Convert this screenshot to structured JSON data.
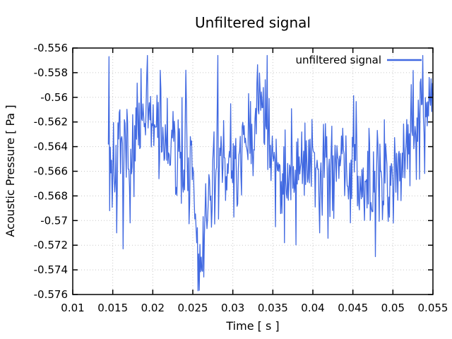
{
  "page": {
    "background": "#ffffff"
  },
  "chart_data": {
    "type": "line",
    "title": "Unfiltered signal",
    "xlabel": "Time [ s ]",
    "ylabel": "Acoustic Pressure [ Pa ]",
    "xlim": [
      0.01,
      0.055
    ],
    "ylim": [
      -0.576,
      -0.556
    ],
    "x_ticks": [
      {
        "v": 0.01,
        "label": "0.01"
      },
      {
        "v": 0.015,
        "label": "0.015"
      },
      {
        "v": 0.02,
        "label": "0.02"
      },
      {
        "v": 0.025,
        "label": "0.025"
      },
      {
        "v": 0.03,
        "label": "0.03"
      },
      {
        "v": 0.035,
        "label": "0.035"
      },
      {
        "v": 0.04,
        "label": "0.04"
      },
      {
        "v": 0.045,
        "label": "0.045"
      },
      {
        "v": 0.05,
        "label": "0.05"
      },
      {
        "v": 0.055,
        "label": "0.055"
      }
    ],
    "y_ticks": [
      {
        "v": -0.556,
        "label": "-0.556"
      },
      {
        "v": -0.558,
        "label": "-0.558"
      },
      {
        "v": -0.56,
        "label": "-0.56"
      },
      {
        "v": -0.562,
        "label": "-0.562"
      },
      {
        "v": -0.564,
        "label": "-0.564"
      },
      {
        "v": -0.566,
        "label": "-0.566"
      },
      {
        "v": -0.568,
        "label": "-0.568"
      },
      {
        "v": -0.57,
        "label": "-0.57"
      },
      {
        "v": -0.572,
        "label": "-0.572"
      },
      {
        "v": -0.574,
        "label": "-0.574"
      },
      {
        "v": -0.576,
        "label": "-0.576"
      }
    ],
    "grid": {
      "style": "dotted",
      "color": "#c8c8c8",
      "on": true
    },
    "legend": {
      "label": "unfiltered signal",
      "position": "top-right"
    },
    "axis_color": "#000000",
    "series": [
      {
        "name": "unfiltered signal",
        "color": "#4169e1",
        "t_start": 0.01445,
        "t_end": 0.055,
        "dt": 8e-05,
        "seed": 7,
        "noise_amp": 0.0027,
        "spike_prob": 0.06,
        "spike_gain": 1.9,
        "clip": [
          -0.5757,
          -0.5566
        ],
        "trend_points": [
          [
            0.01445,
            -0.5645
          ],
          [
            0.015,
            -0.566
          ],
          [
            0.016,
            -0.5652
          ],
          [
            0.017,
            -0.5645
          ],
          [
            0.018,
            -0.5628
          ],
          [
            0.019,
            -0.5625
          ],
          [
            0.02,
            -0.5618
          ],
          [
            0.021,
            -0.5625
          ],
          [
            0.022,
            -0.5645
          ],
          [
            0.023,
            -0.5648
          ],
          [
            0.024,
            -0.564
          ],
          [
            0.0248,
            -0.5672
          ],
          [
            0.0256,
            -0.5728
          ],
          [
            0.0262,
            -0.5715
          ],
          [
            0.027,
            -0.57
          ],
          [
            0.0278,
            -0.5672
          ],
          [
            0.029,
            -0.5655
          ],
          [
            0.03,
            -0.5652
          ],
          [
            0.031,
            -0.5645
          ],
          [
            0.032,
            -0.5632
          ],
          [
            0.033,
            -0.5615
          ],
          [
            0.0338,
            -0.5608
          ],
          [
            0.0346,
            -0.5635
          ],
          [
            0.0356,
            -0.5652
          ],
          [
            0.0366,
            -0.5678
          ],
          [
            0.0372,
            -0.5655
          ],
          [
            0.0382,
            -0.5645
          ],
          [
            0.0392,
            -0.5648
          ],
          [
            0.0402,
            -0.5655
          ],
          [
            0.0412,
            -0.5652
          ],
          [
            0.0422,
            -0.5648
          ],
          [
            0.0432,
            -0.5652
          ],
          [
            0.0442,
            -0.5655
          ],
          [
            0.0452,
            -0.5648
          ],
          [
            0.0462,
            -0.5662
          ],
          [
            0.0472,
            -0.5672
          ],
          [
            0.0482,
            -0.567
          ],
          [
            0.0492,
            -0.5668
          ],
          [
            0.0502,
            -0.5655
          ],
          [
            0.0512,
            -0.5645
          ],
          [
            0.0522,
            -0.563
          ],
          [
            0.0532,
            -0.5612
          ],
          [
            0.0538,
            -0.5612
          ],
          [
            0.0544,
            -0.5622
          ],
          [
            0.055,
            -0.5602
          ]
        ],
        "anchor_points": [
          [
            0.01445,
            -0.5638
          ],
          [
            0.01453,
            -0.5567
          ],
          [
            0.01461,
            -0.5692
          ],
          [
            0.0241,
            -0.5578
          ],
          [
            0.02565,
            -0.5757
          ],
          [
            0.0338,
            -0.5592
          ],
          [
            0.03645,
            -0.5718
          ],
          [
            0.04085,
            -0.571
          ],
          [
            0.0534,
            -0.5588
          ],
          [
            0.055,
            -0.5598
          ]
        ]
      }
    ]
  }
}
